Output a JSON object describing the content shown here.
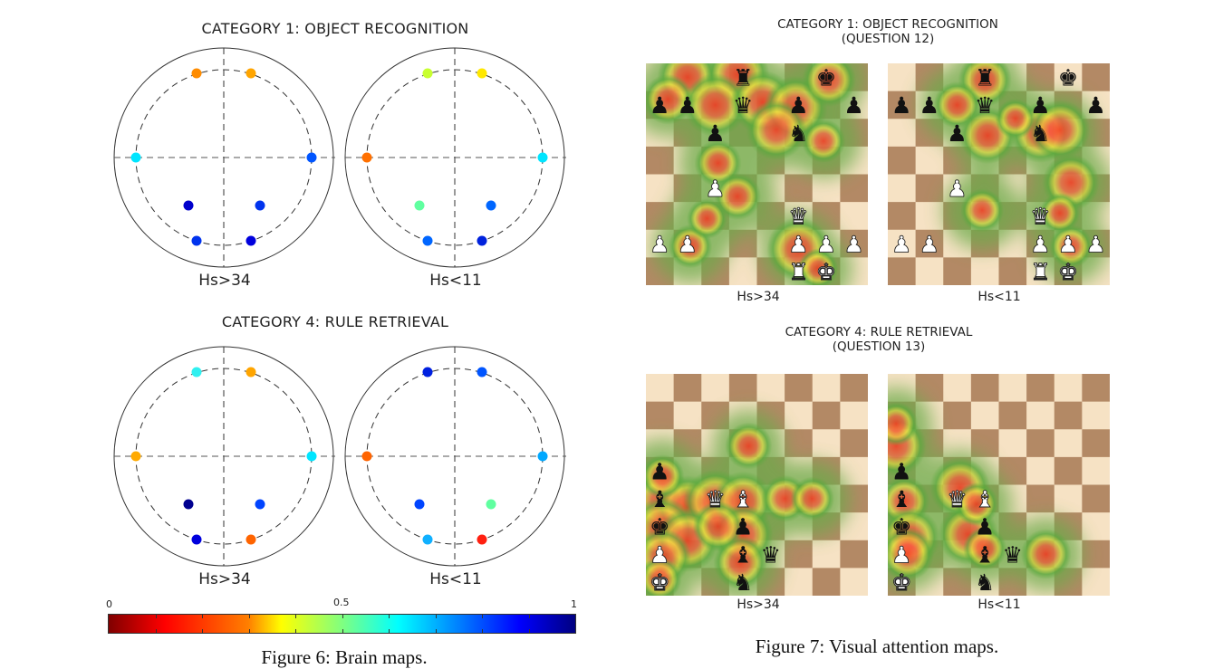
{
  "figure6": {
    "caption": "Figure 6: Brain maps.",
    "panels": [
      {
        "title": "CATEGORY 1: OBJECT RECOGNITION",
        "maps": [
          {
            "label": "Hs>34",
            "electrodes": [
              "#ff8c00",
              "#ffa500",
              "#00e5ff",
              "#0055ff",
              "#0000cc",
              "#0033ee",
              "#0033ee",
              "#0000dd"
            ]
          },
          {
            "label": "Hs<11",
            "electrodes": [
              "#c8ff30",
              "#ffe800",
              "#ff7000",
              "#00e5ff",
              "#60ffa0",
              "#0066ff",
              "#0066ff",
              "#0022dd"
            ]
          }
        ]
      },
      {
        "title": "CATEGORY 4: RULE RETRIEVAL",
        "maps": [
          {
            "label": "Hs>34",
            "electrodes": [
              "#30f0f0",
              "#ffa500",
              "#ffaa00",
              "#00e5ff",
              "#000090",
              "#0044ff",
              "#0000dd",
              "#ff6400"
            ]
          },
          {
            "label": "Hs<11",
            "electrodes": [
              "#0020e0",
              "#0055ff",
              "#ff6400",
              "#00a8ff",
              "#0044ff",
              "#60ffa0",
              "#10b0ff",
              "#ff2010"
            ]
          }
        ]
      }
    ],
    "electrode_positions_note": "order: top-left, top-right, left, right, lower-left, lower-right, bottom-left, bottom-right"
  },
  "colorbar": {
    "min_label": "0",
    "mid_label": "0.5",
    "max_label": "1",
    "colormap": "jet reversed (0 = dark red, 1 = dark blue)"
  },
  "figure7": {
    "caption": "Figure 7: Visual attention maps.",
    "light_square": "#f6e2c4",
    "dark_square": "#b38965",
    "panels": [
      {
        "title": "CATEGORY 1: OBJECT RECOGNITION\n(QUESTION 12)",
        "position": [
          "...r..k.",
          "pp.q.p.p",
          "..p..n..",
          "........",
          "..P.....",
          ".....Q..",
          "PP...PPP",
          ".....RK."
        ],
        "maps": [
          {
            "label": "Hs>34",
            "heat": [
              [
                1.5,
                0.5,
                1.0,
                0.9
              ],
              [
                0.8,
                1.3,
                0.8,
                0.6
              ],
              [
                3.3,
                0.4,
                1.0,
                1.0
              ],
              [
                2.5,
                1.5,
                1.2,
                1.0
              ],
              [
                4.2,
                1.4,
                1.0,
                1.0
              ],
              [
                5.4,
                1.6,
                1.1,
                1.0
              ],
              [
                4.7,
                2.4,
                1.0,
                0.9
              ],
              [
                2.6,
                3.6,
                0.9,
                0.5
              ],
              [
                3.3,
                4.8,
                0.9,
                0.5
              ],
              [
                5.5,
                6.7,
                0.9,
                1.0
              ],
              [
                1.6,
                6.6,
                0.8,
                0.4
              ],
              [
                6.6,
                0.6,
                0.8,
                0.7
              ],
              [
                6.4,
                2.8,
                0.8,
                0.4
              ],
              [
                2.2,
                5.6,
                0.8,
                0.3
              ],
              [
                6.2,
                7.4,
                0.6,
                0.3
              ]
            ]
          },
          {
            "label": "Hs<11",
            "heat": [
              [
                3.5,
                0.6,
                0.7,
                0.7
              ],
              [
                2.5,
                1.5,
                0.8,
                0.5
              ],
              [
                3.6,
                2.6,
                0.8,
                0.8
              ],
              [
                5.5,
                2.5,
                0.8,
                0.9
              ],
              [
                6.2,
                2.4,
                0.8,
                0.9
              ],
              [
                6.6,
                4.3,
                1.0,
                0.8
              ],
              [
                3.4,
                5.3,
                0.9,
                0.4
              ],
              [
                6.6,
                6.6,
                0.8,
                0.4
              ],
              [
                6.2,
                5.4,
                0.8,
                0.3
              ],
              [
                4.6,
                2.0,
                0.8,
                0.3
              ]
            ]
          }
        ]
      },
      {
        "title": "CATEGORY 4: RULE RETRIEVAL\n(QUESTION 13)",
        "position": [
          "........",
          "........",
          "........",
          "p.......",
          "b.QB....",
          "k..p....",
          "P..bq...",
          "K..n...."
        ],
        "maps": [
          {
            "label": "Hs>34",
            "heat": [
              [
                3.7,
                2.6,
                0.7,
                0.5
              ],
              [
                0.6,
                4.6,
                1.0,
                1.0
              ],
              [
                1.5,
                4.8,
                1.0,
                1.0
              ],
              [
                2.5,
                4.6,
                1.0,
                1.0
              ],
              [
                3.5,
                4.6,
                1.0,
                0.9
              ],
              [
                0.6,
                5.6,
                0.9,
                1.0
              ],
              [
                1.5,
                6.0,
                1.0,
                1.0
              ],
              [
                3.5,
                5.8,
                0.9,
                0.9
              ],
              [
                0.6,
                6.6,
                0.9,
                0.8
              ],
              [
                3.4,
                6.8,
                0.9,
                0.7
              ],
              [
                5.0,
                4.5,
                0.8,
                0.5
              ],
              [
                6.0,
                4.5,
                0.8,
                0.4
              ],
              [
                0.6,
                3.7,
                0.8,
                0.4
              ],
              [
                2.6,
                5.5,
                0.7,
                0.6
              ],
              [
                0.5,
                7.4,
                0.7,
                0.4
              ]
            ]
          },
          {
            "label": "Hs<11",
            "heat": [
              [
                0.3,
                2.6,
                0.8,
                0.9
              ],
              [
                0.3,
                1.8,
                0.7,
                0.4
              ],
              [
                0.6,
                4.6,
                0.8,
                0.6
              ],
              [
                0.8,
                5.9,
                0.8,
                0.9
              ],
              [
                0.7,
                6.5,
                0.8,
                0.7
              ],
              [
                2.6,
                4.1,
                0.8,
                0.9
              ],
              [
                2.9,
                5.8,
                0.8,
                0.9
              ],
              [
                3.5,
                6.3,
                0.7,
                0.4
              ],
              [
                3.2,
                4.7,
                0.7,
                0.4
              ],
              [
                5.7,
                6.5,
                0.8,
                0.6
              ]
            ]
          }
        ]
      }
    ]
  }
}
